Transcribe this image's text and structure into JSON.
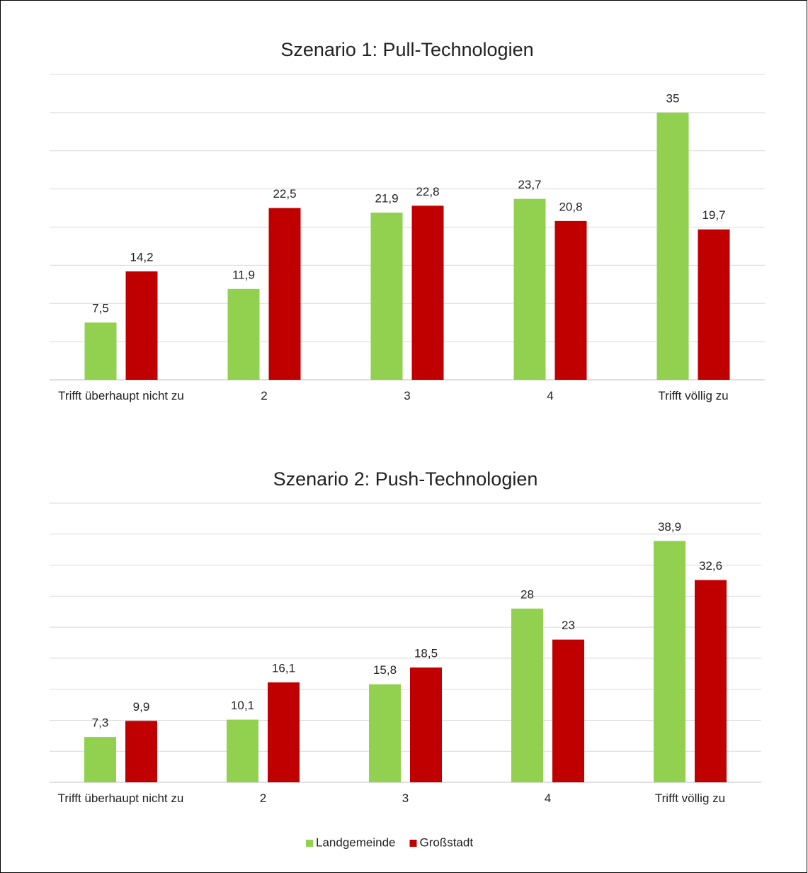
{
  "chart_data": [
    {
      "type": "bar",
      "title": "Szenario 1: Pull-Technologien",
      "categories": [
        "Trifft überhaupt nicht zu",
        "2",
        "3",
        "4",
        "Trifft völlig zu"
      ],
      "series": [
        {
          "color": "#92d050",
          "values": [
            7.5,
            11.9,
            21.9,
            23.7,
            35
          ],
          "value_labels": [
            "7,5",
            "11,9",
            "21,9",
            "23,7",
            "35"
          ]
        },
        {
          "color": "#c00000",
          "values": [
            14.2,
            22.5,
            22.8,
            20.8,
            19.7
          ],
          "value_labels": [
            "14,2",
            "22,5",
            "22,8",
            "20,8",
            "19,7"
          ]
        }
      ],
      "ylim": [
        0,
        40
      ],
      "yticks": [
        0,
        5,
        10,
        15,
        20,
        25,
        30,
        35,
        40
      ],
      "grid": true
    },
    {
      "type": "bar",
      "title": "Szenario 2: Push-Technologien",
      "categories": [
        "Trifft überhaupt nicht zu",
        "2",
        "3",
        "4",
        "Trifft völlig zu"
      ],
      "series": [
        {
          "name": "Landgemeinde",
          "color": "#92d050",
          "values": [
            7.3,
            10.1,
            15.8,
            28,
            38.9
          ],
          "value_labels": [
            "7,3",
            "10,1",
            "15,8",
            "28",
            "38,9"
          ]
        },
        {
          "name": "Großstadt",
          "color": "#c00000",
          "values": [
            9.9,
            16.1,
            18.5,
            23,
            32.6
          ],
          "value_labels": [
            "9,9",
            "16,1",
            "18,5",
            "23",
            "32,6"
          ]
        }
      ],
      "ylim": [
        0,
        45
      ],
      "yticks": [
        0,
        5,
        10,
        15,
        20,
        25,
        30,
        35,
        40,
        45
      ],
      "grid": true,
      "legend": "bottom"
    }
  ]
}
